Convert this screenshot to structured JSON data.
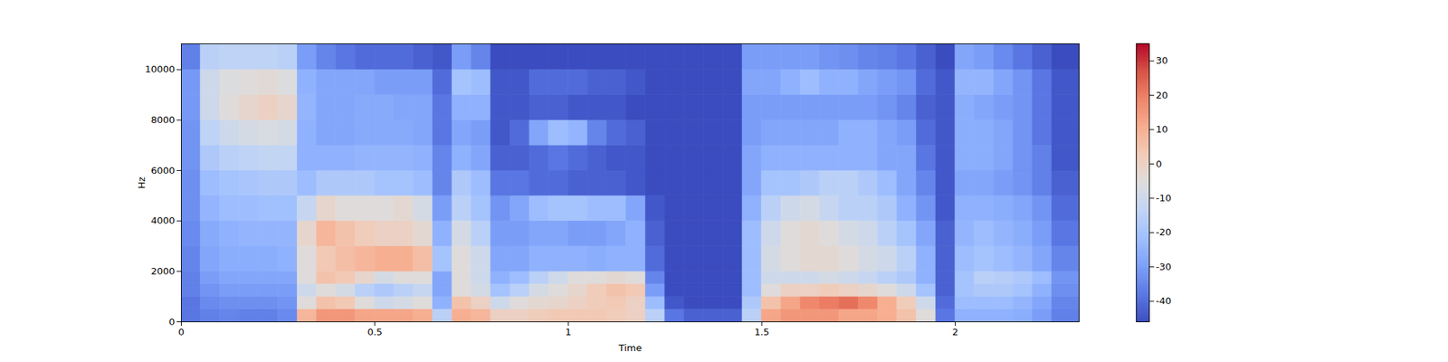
{
  "chart_data": {
    "type": "heatmap",
    "xlabel": "Time",
    "ylabel": "Hz",
    "color": "coolwarm",
    "xlim": [
      0,
      2.32
    ],
    "ylim": [
      0,
      11025
    ],
    "xticks": [
      0,
      0.5,
      1,
      1.5,
      2
    ],
    "yticks": [
      0,
      2000,
      4000,
      6000,
      8000,
      10000
    ],
    "time_bins": [
      0,
      0.05,
      0.1,
      0.15,
      0.2,
      0.25,
      0.3,
      0.35,
      0.4,
      0.45,
      0.5,
      0.55,
      0.6,
      0.65,
      0.7,
      0.75,
      0.8,
      0.85,
      0.9,
      0.95,
      1.0,
      1.05,
      1.1,
      1.15,
      1.2,
      1.25,
      1.3,
      1.35,
      1.4,
      1.45,
      1.5,
      1.55,
      1.6,
      1.65,
      1.7,
      1.75,
      1.8,
      1.85,
      1.9,
      1.95,
      2.0,
      2.05,
      2.1,
      2.15,
      2.2,
      2.25,
      2.32
    ],
    "freq_bins": [
      0,
      500,
      1000,
      1500,
      2000,
      3000,
      4000,
      5000,
      6000,
      7000,
      8000,
      9000,
      10000,
      11025
    ],
    "cells": [
      [
        -38,
        -38,
        -36,
        -36,
        -35,
        -34,
        -33,
        -33,
        -32,
        -32,
        -31,
        -31,
        -36
      ],
      [
        -36,
        -34,
        -32,
        -30,
        -28,
        -27,
        -24,
        -22,
        -18,
        -14,
        -10,
        -10,
        -15
      ],
      [
        -35,
        -33,
        -30,
        -28,
        -26,
        -25,
        -22,
        -20,
        -15,
        -10,
        -5,
        -6,
        -14
      ],
      [
        -36,
        -33,
        -30,
        -28,
        -26,
        -24,
        -22,
        -19,
        -14,
        -8,
        -2,
        -5,
        -14
      ],
      [
        -36,
        -33,
        -30,
        -28,
        -26,
        -24,
        -21,
        -18,
        -13,
        -7,
        0,
        -4,
        -14
      ],
      [
        -34,
        -32,
        -30,
        -28,
        -25,
        -24,
        -21,
        -18,
        -13,
        -8,
        -2,
        -6,
        -15
      ],
      [
        8,
        -5,
        -10,
        -5,
        -5,
        -2,
        -12,
        -22,
        -25,
        -25,
        -24,
        -25,
        -30
      ],
      [
        15,
        5,
        -5,
        5,
        3,
        8,
        -2,
        -18,
        -25,
        -28,
        -28,
        -28,
        -35
      ],
      [
        15,
        3,
        -8,
        3,
        6,
        5,
        -5,
        -18,
        -25,
        -28,
        -28,
        -28,
        -38
      ],
      [
        12,
        -5,
        -15,
        -2,
        8,
        2,
        -5,
        -18,
        -24,
        -27,
        -27,
        -28,
        -40
      ],
      [
        12,
        -10,
        -18,
        -8,
        10,
        0,
        -5,
        -20,
        -24,
        -27,
        -27,
        -30,
        -40
      ],
      [
        12,
        -8,
        -15,
        -5,
        10,
        0,
        -3,
        -20,
        -24,
        -27,
        -28,
        -30,
        -40
      ],
      [
        10,
        -5,
        -12,
        -5,
        6,
        -3,
        -8,
        -22,
        -25,
        -28,
        -28,
        -30,
        -42
      ],
      [
        -15,
        -25,
        -28,
        -28,
        -20,
        -25,
        -30,
        -35,
        -35,
        -38,
        -38,
        -40,
        -44
      ],
      [
        10,
        5,
        -5,
        -5,
        -5,
        -8,
        -15,
        -18,
        -25,
        -28,
        -25,
        -20,
        -30
      ],
      [
        8,
        0,
        -8,
        -10,
        -10,
        -15,
        -20,
        -22,
        -28,
        -30,
        -25,
        -22,
        -35
      ],
      [
        0,
        -10,
        -20,
        -25,
        -28,
        -30,
        -32,
        -38,
        -42,
        -44,
        -44,
        -44,
        -46
      ],
      [
        0,
        -5,
        -15,
        -22,
        -28,
        -30,
        -28,
        -38,
        -42,
        -40,
        -44,
        -44,
        -46
      ],
      [
        2,
        -3,
        -8,
        -15,
        -25,
        -28,
        -22,
        -40,
        -40,
        -28,
        -42,
        -40,
        -46
      ],
      [
        3,
        -2,
        -5,
        -10,
        -25,
        -28,
        -20,
        -40,
        -38,
        -22,
        -42,
        -40,
        -46
      ],
      [
        3,
        0,
        -2,
        -5,
        -25,
        -30,
        -20,
        -42,
        -40,
        -24,
        -44,
        -40,
        -46
      ],
      [
        3,
        2,
        2,
        -5,
        -26,
        -30,
        -22,
        -42,
        -42,
        -35,
        -44,
        -42,
        -46
      ],
      [
        2,
        3,
        5,
        -3,
        -25,
        -28,
        -22,
        -42,
        -44,
        -40,
        -44,
        -42,
        -46
      ],
      [
        0,
        0,
        3,
        -5,
        -25,
        -25,
        -28,
        -44,
        -44,
        -42,
        -46,
        -44,
        -46
      ],
      [
        -15,
        -22,
        -30,
        -35,
        -40,
        -42,
        -44,
        -46,
        -46,
        -46,
        -46,
        -46,
        -46
      ],
      [
        -38,
        -44,
        -46,
        -46,
        -46,
        -46,
        -46,
        -46,
        -46,
        -46,
        -46,
        -46,
        -46
      ],
      [
        -42,
        -46,
        -46,
        -46,
        -46,
        -46,
        -46,
        -46,
        -46,
        -46,
        -46,
        -46,
        -46
      ],
      [
        -42,
        -46,
        -46,
        -46,
        -46,
        -46,
        -46,
        -46,
        -46,
        -46,
        -46,
        -46,
        -46
      ],
      [
        -42,
        -46,
        -46,
        -46,
        -46,
        -46,
        -46,
        -46,
        -46,
        -46,
        -46,
        -46,
        -46
      ],
      [
        -15,
        -18,
        -22,
        -22,
        -22,
        -22,
        -25,
        -28,
        -28,
        -30,
        -30,
        -28,
        -30
      ],
      [
        12,
        5,
        -5,
        -10,
        -8,
        -10,
        -15,
        -20,
        -25,
        -28,
        -30,
        -28,
        -30
      ],
      [
        15,
        12,
        0,
        -10,
        -5,
        -5,
        -10,
        -20,
        -25,
        -28,
        -30,
        -25,
        -30
      ],
      [
        15,
        18,
        0,
        -10,
        -3,
        -3,
        -8,
        -18,
        -25,
        -28,
        -30,
        -22,
        -30
      ],
      [
        15,
        20,
        2,
        -8,
        -3,
        -5,
        -12,
        -15,
        -25,
        -28,
        -30,
        -25,
        -32
      ],
      [
        12,
        22,
        0,
        -10,
        -5,
        -8,
        -15,
        -15,
        -25,
        -25,
        -30,
        -25,
        -33
      ],
      [
        12,
        18,
        -2,
        -12,
        -8,
        -10,
        -15,
        -18,
        -25,
        -25,
        -30,
        -28,
        -35
      ],
      [
        10,
        10,
        -5,
        -15,
        -10,
        -15,
        -18,
        -22,
        -28,
        -28,
        -32,
        -30,
        -36
      ],
      [
        5,
        2,
        -10,
        -18,
        -15,
        -20,
        -25,
        -28,
        -28,
        -30,
        -35,
        -32,
        -38
      ],
      [
        -5,
        -10,
        -20,
        -25,
        -25,
        -28,
        -32,
        -35,
        -38,
        -40,
        -42,
        -40,
        -42
      ],
      [
        -38,
        -40,
        -42,
        -42,
        -42,
        -42,
        -44,
        -44,
        -44,
        -44,
        -44,
        -44,
        -46
      ],
      [
        -25,
        -22,
        -20,
        -20,
        -22,
        -24,
        -25,
        -28,
        -26,
        -26,
        -26,
        -24,
        -28
      ],
      [
        -25,
        -22,
        -18,
        -15,
        -20,
        -22,
        -25,
        -28,
        -26,
        -26,
        -28,
        -24,
        -30
      ],
      [
        -25,
        -22,
        -18,
        -16,
        -22,
        -24,
        -26,
        -30,
        -28,
        -28,
        -30,
        -28,
        -34
      ],
      [
        -26,
        -24,
        -20,
        -18,
        -24,
        -26,
        -28,
        -32,
        -32,
        -32,
        -32,
        -32,
        -38
      ],
      [
        -30,
        -28,
        -25,
        -22,
        -28,
        -30,
        -32,
        -36,
        -36,
        -38,
        -38,
        -38,
        -42
      ],
      [
        -36,
        -35,
        -33,
        -32,
        -35,
        -38,
        -40,
        -42,
        -44,
        -44,
        -44,
        -44,
        -46
      ]
    ],
    "colorbar": {
      "range": [
        -46,
        35
      ],
      "ticks": [
        -40,
        -30,
        -20,
        -10,
        0,
        10,
        20,
        30
      ]
    }
  }
}
